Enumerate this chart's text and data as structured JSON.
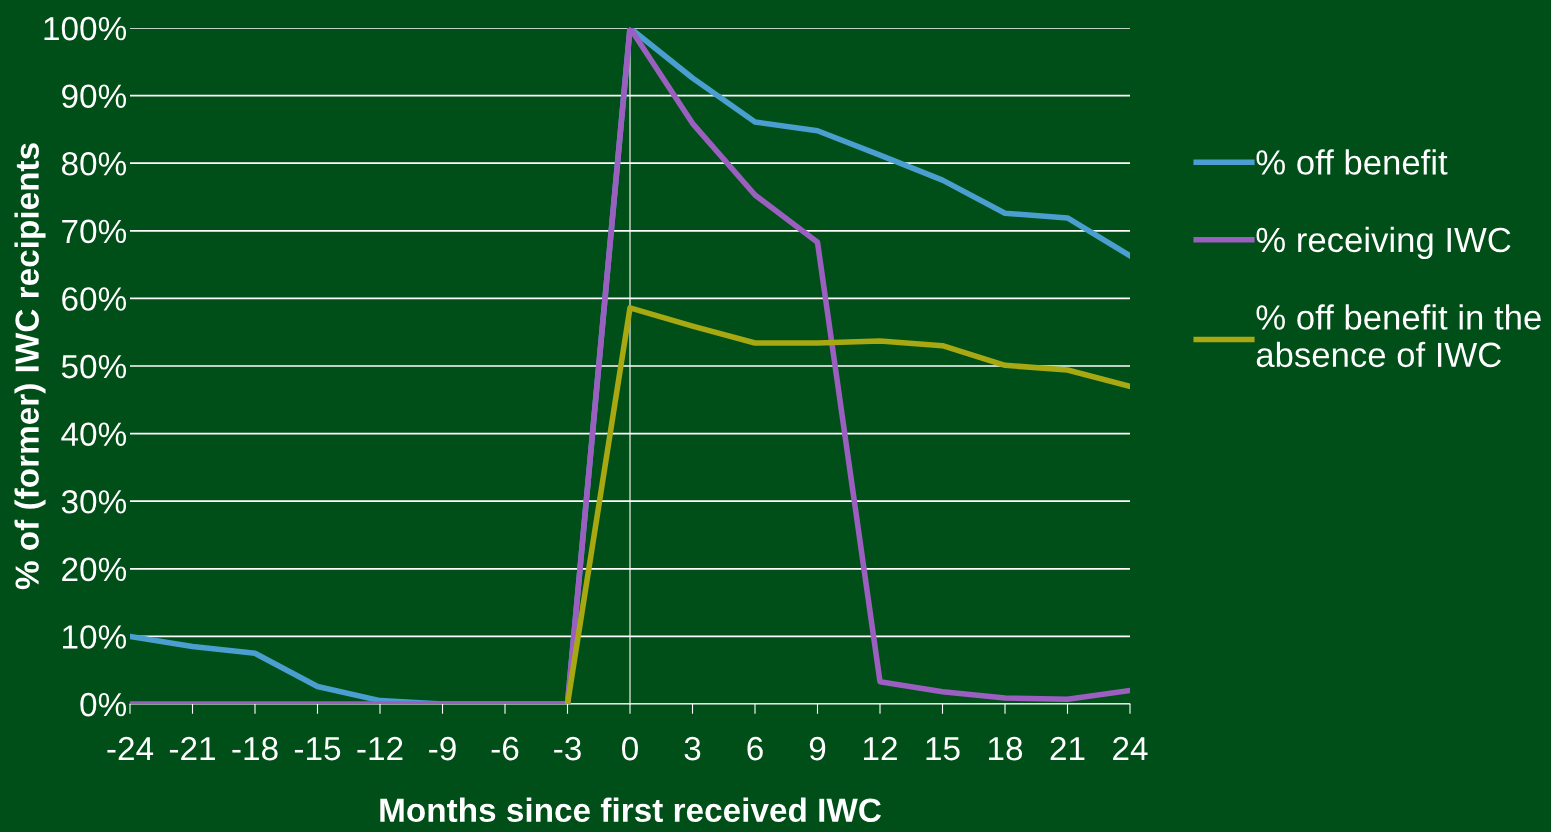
{
  "chart_data": {
    "type": "line",
    "xlabel": "Months since first received IWC",
    "ylabel": "% of (former) IWC recipients",
    "x": [
      -24,
      -21,
      -18,
      -15,
      -12,
      -9,
      -6,
      -3,
      0,
      3,
      6,
      9,
      12,
      15,
      18,
      21,
      24
    ],
    "series": [
      {
        "name": "% off benefit",
        "color": "#4a9fd0",
        "values": [
          10,
          8.5,
          7.5,
          2.6,
          0.5,
          0,
          0,
          0,
          100,
          92.6,
          86.1,
          84.8,
          81.2,
          77.5,
          72.6,
          71.9,
          66.3
        ]
      },
      {
        "name": "% receiving IWC",
        "color": "#9b5fc0",
        "values": [
          0,
          0,
          0,
          0,
          0,
          0,
          0,
          0,
          100,
          85.9,
          75.3,
          68.3,
          3.3,
          1.8,
          0.9,
          0.7,
          2
        ]
      },
      {
        "name": "% off benefit in the\nabsence of IWC",
        "color": "#a8a812",
        "values": [
          null,
          null,
          null,
          null,
          null,
          null,
          null,
          0,
          58.6,
          55.9,
          53.4,
          53.4,
          53.7,
          53.0,
          50.1,
          49.4,
          47.0
        ]
      }
    ],
    "xlim": [
      -24,
      24
    ],
    "xticks": [
      -24,
      -21,
      -18,
      -15,
      -12,
      -9,
      -6,
      -3,
      0,
      3,
      6,
      9,
      12,
      15,
      18,
      21,
      24
    ],
    "ylim": [
      0,
      100
    ],
    "yticks": [
      {
        "value": 0,
        "label": "0%"
      },
      {
        "value": 10,
        "label": "10%"
      },
      {
        "value": 20,
        "label": "20%"
      },
      {
        "value": 30,
        "label": "30%"
      },
      {
        "value": 40,
        "label": "40%"
      },
      {
        "value": 50,
        "label": "50%"
      },
      {
        "value": 60,
        "label": "60%"
      },
      {
        "value": 70,
        "label": "70%"
      },
      {
        "value": 80,
        "label": "80%"
      },
      {
        "value": 90,
        "label": "90%"
      },
      {
        "value": 100,
        "label": "100%"
      }
    ],
    "grid": "y",
    "legend": "right",
    "marker": "none",
    "line_style": "solid"
  }
}
